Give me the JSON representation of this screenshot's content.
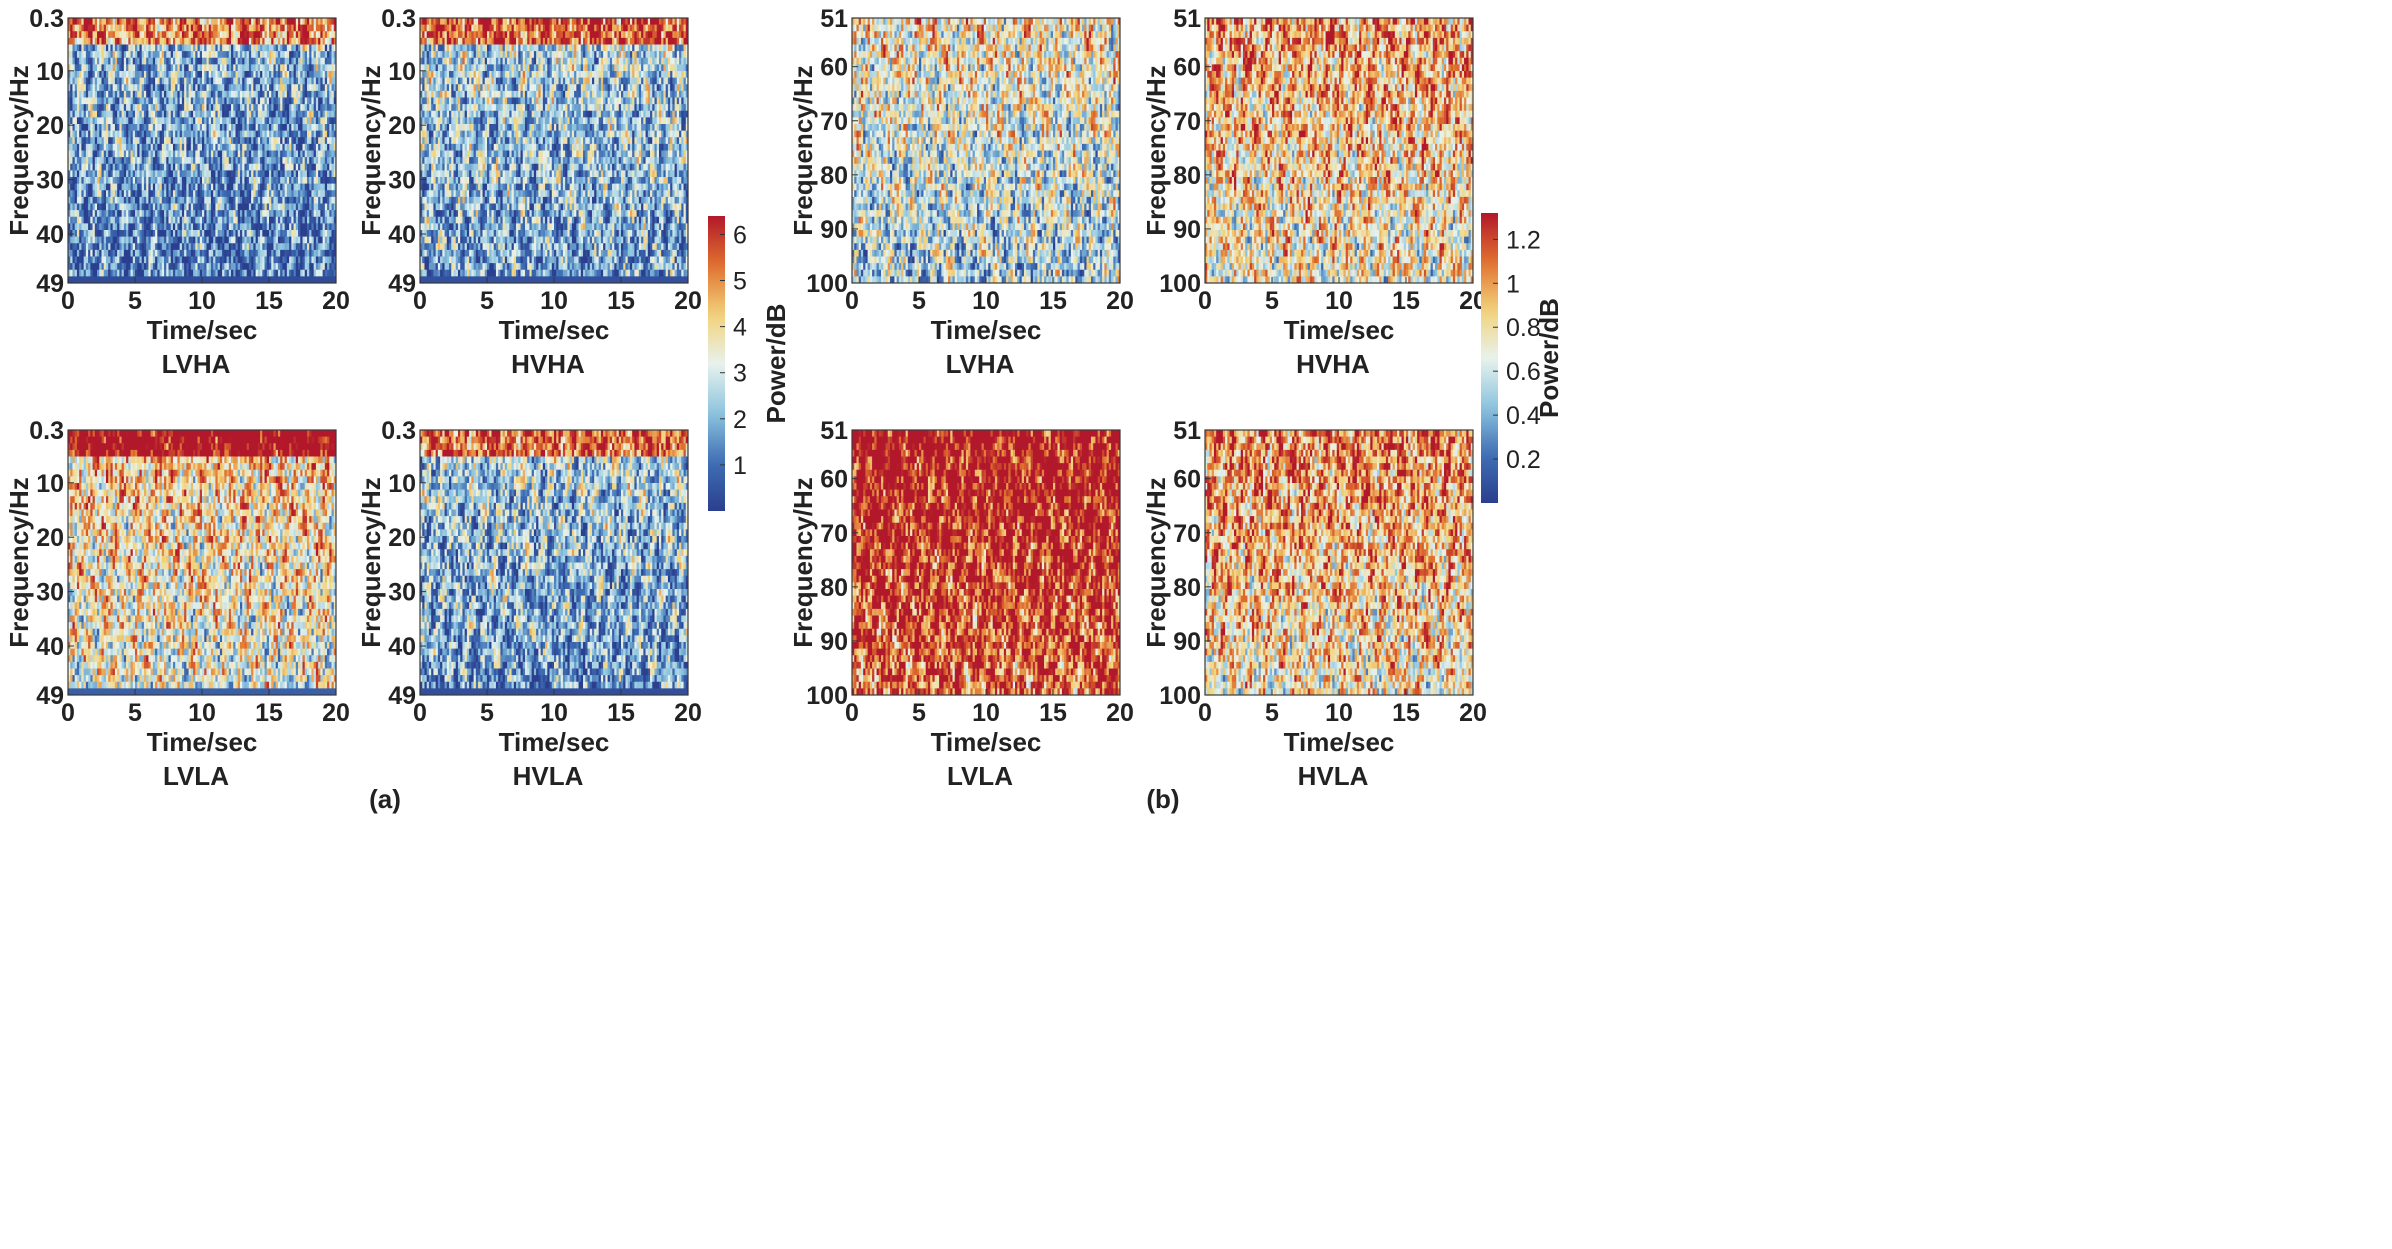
{
  "chart_data": {
    "type": "heatmap",
    "groups": [
      {
        "caption": "(a)",
        "colorbar": {
          "label": "Power/dB",
          "ticks": [
            1,
            2,
            3,
            4,
            5,
            6
          ],
          "range": [
            0,
            6.4
          ]
        },
        "panels": [
          {
            "name": "LVHA",
            "xlabel": "Time/sec",
            "ylabel": "Frequency/Hz",
            "xticks": [
              0,
              5,
              10,
              15,
              20
            ],
            "yticks": [
              "0.3",
              "10",
              "20",
              "30",
              "40",
              "49"
            ],
            "xlim": [
              0,
              20
            ],
            "ylim": [
              0.3,
              49
            ],
            "intensity": 0.22
          },
          {
            "name": "HVHA",
            "xlabel": "Time/sec",
            "ylabel": "Frequency/Hz",
            "xticks": [
              0,
              5,
              10,
              15,
              20
            ],
            "yticks": [
              "0.3",
              "10",
              "20",
              "30",
              "40",
              "49"
            ],
            "xlim": [
              0,
              20
            ],
            "ylim": [
              0.3,
              49
            ],
            "intensity": 0.3
          },
          {
            "name": "LVLA",
            "xlabel": "Time/sec",
            "ylabel": "Frequency/Hz",
            "xticks": [
              0,
              5,
              10,
              15,
              20
            ],
            "yticks": [
              "0.3",
              "10",
              "20",
              "30",
              "40",
              "49"
            ],
            "xlim": [
              0,
              20
            ],
            "ylim": [
              0.3,
              49
            ],
            "intensity": 0.55
          },
          {
            "name": "HVLA",
            "xlabel": "Time/sec",
            "ylabel": "Frequency/Hz",
            "xticks": [
              0,
              5,
              10,
              15,
              20
            ],
            "yticks": [
              "0.3",
              "10",
              "20",
              "30",
              "40",
              "49"
            ],
            "xlim": [
              0,
              20
            ],
            "ylim": [
              0.3,
              49
            ],
            "intensity": 0.28
          }
        ]
      },
      {
        "caption": "(b)",
        "colorbar": {
          "label": "Power/dB",
          "ticks": [
            0.2,
            0.4,
            0.6,
            0.8,
            1,
            1.2
          ],
          "range": [
            0,
            1.32
          ]
        },
        "panels": [
          {
            "name": "LVHA",
            "xlabel": "Time/sec",
            "ylabel": "Frequency/Hz",
            "xticks": [
              0,
              5,
              10,
              15,
              20
            ],
            "yticks": [
              "51",
              "60",
              "70",
              "80",
              "90",
              "100"
            ],
            "xlim": [
              0,
              20
            ],
            "ylim": [
              51,
              100
            ],
            "intensity": 0.45
          },
          {
            "name": "HVHA",
            "xlabel": "Time/sec",
            "ylabel": "Frequency/Hz",
            "xticks": [
              0,
              5,
              10,
              15,
              20
            ],
            "yticks": [
              "51",
              "60",
              "70",
              "80",
              "90",
              "100"
            ],
            "xlim": [
              0,
              20
            ],
            "ylim": [
              51,
              100
            ],
            "intensity": 0.62
          },
          {
            "name": "LVLA",
            "xlabel": "Time/sec",
            "ylabel": "Frequency/Hz",
            "xticks": [
              0,
              5,
              10,
              15,
              20
            ],
            "yticks": [
              "51",
              "60",
              "70",
              "80",
              "90",
              "100"
            ],
            "xlim": [
              0,
              20
            ],
            "ylim": [
              51,
              100
            ],
            "intensity": 0.92
          },
          {
            "name": "HVLA",
            "xlabel": "Time/sec",
            "ylabel": "Frequency/Hz",
            "xticks": [
              0,
              5,
              10,
              15,
              20
            ],
            "yticks": [
              "51",
              "60",
              "70",
              "80",
              "90",
              "100"
            ],
            "xlim": [
              0,
              20
            ],
            "ylim": [
              51,
              100
            ],
            "intensity": 0.66
          }
        ]
      }
    ],
    "colormap": [
      "#2b3f8f",
      "#3f6fb5",
      "#8ec5df",
      "#e8f2ec",
      "#f2d27a",
      "#e0702f",
      "#b2182b"
    ]
  }
}
